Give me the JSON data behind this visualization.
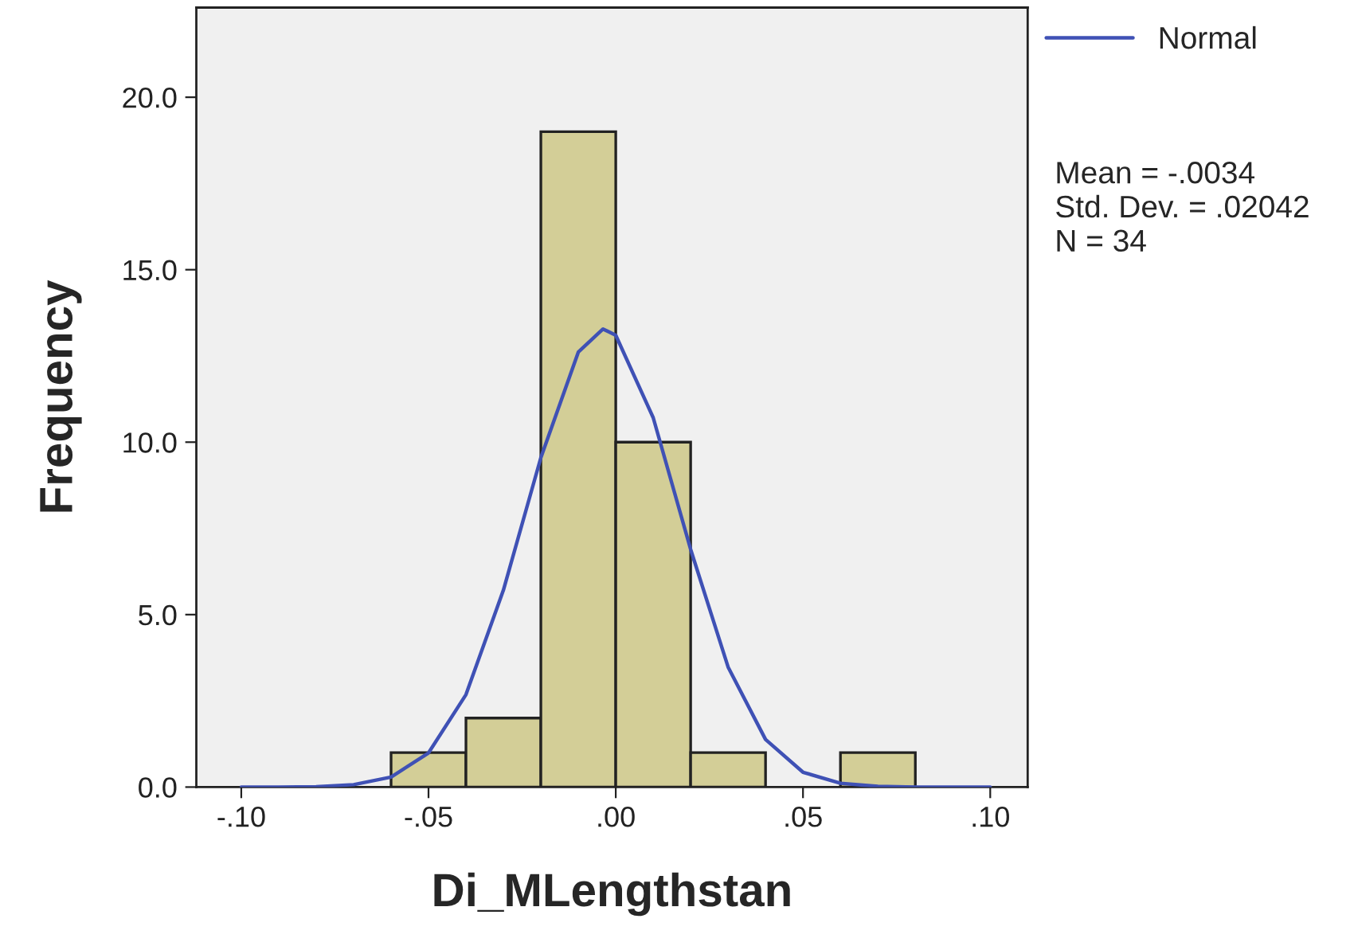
{
  "chart_data": {
    "type": "histogram",
    "xlabel": "Di_MLengthstan",
    "ylabel": "Frequency",
    "bins": [
      -0.06,
      -0.04,
      -0.02,
      0.0,
      0.02,
      0.04,
      0.06,
      0.08
    ],
    "values": [
      1,
      2,
      19,
      10,
      1,
      0,
      1
    ],
    "color": "#d3ce97",
    "series": [
      {
        "name": "Normal",
        "type": "line",
        "color": "#3f51b5",
        "x": [
          -0.1,
          -0.09,
          -0.08,
          -0.07,
          -0.06,
          -0.05,
          -0.04,
          -0.03,
          -0.02,
          -0.01,
          -0.0034,
          0.0,
          0.01,
          0.02,
          0.03,
          0.04,
          0.05,
          0.06,
          0.07,
          0.08,
          0.09,
          0.1
        ],
        "values": [
          0.0,
          0.0,
          0.01,
          0.07,
          0.29,
          0.99,
          2.68,
          5.71,
          9.55,
          12.61,
          13.28,
          13.1,
          10.71,
          6.89,
          3.48,
          1.38,
          0.43,
          0.11,
          0.02,
          0.0,
          0.0,
          0.0
        ]
      }
    ],
    "xlim": [
      -0.112,
      0.11
    ],
    "ylim": [
      0,
      22.6
    ],
    "xticks": [
      {
        "value": -0.1,
        "label": "-.10"
      },
      {
        "value": -0.05,
        "label": "-.05"
      },
      {
        "value": 0.0,
        "label": ".00"
      },
      {
        "value": 0.05,
        "label": ".05"
      },
      {
        "value": 0.1,
        "label": ".10"
      }
    ],
    "yticks": [
      {
        "value": 0,
        "label": "0.0"
      },
      {
        "value": 5,
        "label": "5.0"
      },
      {
        "value": 10,
        "label": "10.0"
      },
      {
        "value": 15,
        "label": "15.0"
      },
      {
        "value": 20,
        "label": "20.0"
      }
    ],
    "grid": false,
    "legend": "top right",
    "annotations": [
      "Mean = -.0034",
      "Std. Dev. = .02042",
      "N = 34"
    ]
  }
}
